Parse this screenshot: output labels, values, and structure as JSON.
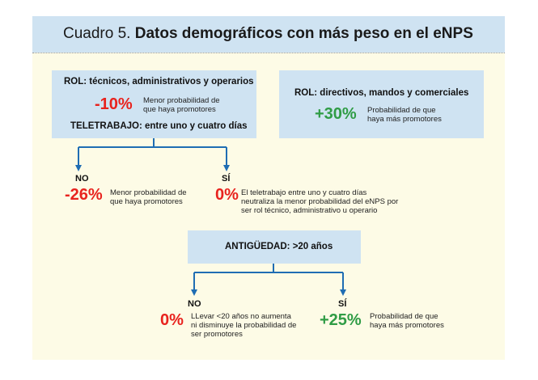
{
  "header": {
    "prefix": "Cuadro 5.",
    "title": "Datos demográficos con más peso en el eNPS"
  },
  "box_left": {
    "role_label": "ROL: técnicos, administrativos y operarios",
    "role_value": "-10%",
    "role_desc_1": "Menor probabilidad de",
    "role_desc_2": "que haya promotores",
    "telework_label": "TELETRABAJO: entre uno y cuatro días"
  },
  "box_right": {
    "role_label": "ROL: directivos, mandos y comerciales",
    "value": "+30%",
    "desc_1": "Probabilidad de que",
    "desc_2": "haya más promotores"
  },
  "branch1": {
    "no_label": "NO",
    "no_value": "-26%",
    "no_desc_1": "Menor probabilidad de",
    "no_desc_2": "que haya promotores",
    "si_label": "SÍ",
    "si_value": "0%",
    "si_desc_1": "El teletrabajo entre uno y cuatro días",
    "si_desc_2": "neutraliza la menor probabilidad del eNPS por",
    "si_desc_3": "ser rol técnico, administrativo u operario"
  },
  "box_antiguedad": {
    "label": "ANTIGÜEDAD: >20 años"
  },
  "branch2": {
    "no_label": "NO",
    "no_value": "0%",
    "no_desc_1": "LLevar <20 años no aumenta",
    "no_desc_2": "ni disminuye la probabilidad de",
    "no_desc_3": "ser promotores",
    "si_label": "SÍ",
    "si_value": "+25%",
    "si_desc_1": "Probabilidad de que",
    "si_desc_2": "haya más promotores"
  },
  "colors": {
    "header_bg": "#cfe3f2",
    "panel_bg": "#fdfbe6",
    "negative": "#e8231e",
    "positive": "#2f9c45",
    "connector": "#1f6db3"
  }
}
